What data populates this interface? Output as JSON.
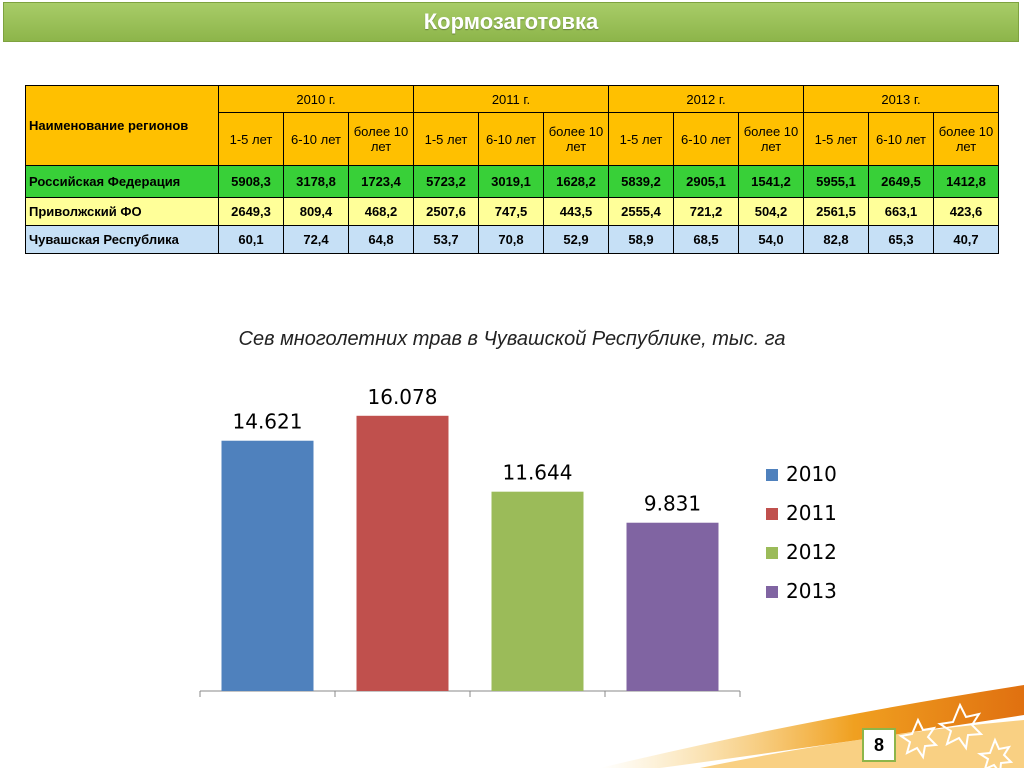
{
  "header": {
    "title": "Кормозаготовка"
  },
  "table": {
    "region_header": "Наименование регионов",
    "years": [
      "2010 г.",
      "2011 г.",
      "2012 г.",
      "2013 г."
    ],
    "subheaders": [
      "1-5 лет",
      "6-10 лет",
      "более 10 лет"
    ],
    "rows": [
      {
        "name": "Российская Федерация",
        "values": [
          "5908,3",
          "3178,8",
          "1723,4",
          "5723,2",
          "3019,1",
          "1628,2",
          "5839,2",
          "2905,1",
          "1541,2",
          "5955,1",
          "2649,5",
          "1412,8"
        ]
      },
      {
        "name": "Приволжский ФО",
        "values": [
          "2649,3",
          "809,4",
          "468,2",
          "2507,6",
          "747,5",
          "443,5",
          "2555,4",
          "721,2",
          "504,2",
          "2561,5",
          "663,1",
          "423,6"
        ]
      },
      {
        "name": "Чувашская Республика",
        "values": [
          "60,1",
          "72,4",
          "64,8",
          "53,7",
          "70,8",
          "52,9",
          "58,9",
          "68,5",
          "54,0",
          "82,8",
          "65,3",
          "40,7"
        ]
      }
    ]
  },
  "chart_data": {
    "type": "bar",
    "title": "Сев многолетних трав в Чувашской Республике, тыс. га",
    "categories": [
      "2010",
      "2011",
      "2012",
      "2013"
    ],
    "values": [
      14.621,
      16.078,
      11.644,
      9.831
    ],
    "labels": [
      "14.621",
      "16.078",
      "11.644",
      "9.831"
    ],
    "colors": [
      "#4f81bd",
      "#c0504d",
      "#9bbb59",
      "#8064a2"
    ],
    "ylim": [
      0,
      17
    ],
    "legend": "right",
    "grid": false
  },
  "footer": {
    "page_number": "8"
  }
}
